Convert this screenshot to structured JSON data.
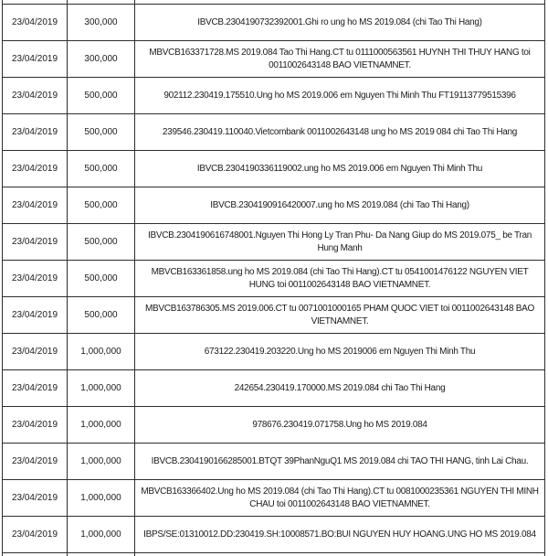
{
  "colors": {
    "background": "#ffffff",
    "border": "#2e2e2e",
    "text": "#1b1b1b"
  },
  "table": {
    "rows": [
      {
        "date": "23/04/2019",
        "amount": "300,000",
        "description": "IBVCB.2304190732392001.Ghi ro ung ho MS 2019.084 (chi Tao Thi Hang)"
      },
      {
        "date": "23/04/2019",
        "amount": "300,000",
        "description": "MBVCB163371728.MS 2019.084 Tao Thi Hang.CT tu 0111000563561 HUYNH THI THUY HANG toi 0011002643148 BAO VIETNAMNET."
      },
      {
        "date": "23/04/2019",
        "amount": "500,000",
        "description": "902112.230419.175510.Ung ho MS 2019.006 em Nguyen Thi Minh Thu FT19113779515396"
      },
      {
        "date": "23/04/2019",
        "amount": "500,000",
        "description": "239546.230419.110040.Vietcombank 0011002643148 ung ho MS 2019 084 chi Tao Thi Hang"
      },
      {
        "date": "23/04/2019",
        "amount": "500,000",
        "description": "IBVCB.2304190336119002.ung ho MS 2019.006 em Nguyen Thi Minh Thu"
      },
      {
        "date": "23/04/2019",
        "amount": "500,000",
        "description": "IBVCB.2304190916420007.ung ho MS 2019.084 (chi Tao Thi Hang)"
      },
      {
        "date": "23/04/2019",
        "amount": "500,000",
        "description": "IBVCB.2304190616748001.Nguyen Thi Hong Ly Tran Phu- Da Nang Giup do MS 2019.075_ be Tran Hung Manh"
      },
      {
        "date": "23/04/2019",
        "amount": "500,000",
        "description": "MBVCB163361858.ung ho MS 2019.084 (chi Tao Thi Hang).CT tu 0541001476122 NGUYEN VIET HUNG toi 0011002643148 BAO VIETNAMNET."
      },
      {
        "date": "23/04/2019",
        "amount": "500,000",
        "description": "MBVCB163786305.MS 2019.006.CT tu 0071001000165 PHAM QUOC VIET toi 0011002643148 BAO VIETNAMNET."
      },
      {
        "date": "23/04/2019",
        "amount": "1,000,000",
        "description": "673122.230419.203220.Ung ho MS 2019006 em Nguyen Thi Minh Thu"
      },
      {
        "date": "23/04/2019",
        "amount": "1,000,000",
        "description": "242654.230419.170000.MS 2019.084 chi Tao Thi Hang"
      },
      {
        "date": "23/04/2019",
        "amount": "1,000,000",
        "description": "978676.230419.071758.Ung ho MS 2019.084"
      },
      {
        "date": "23/04/2019",
        "amount": "1,000,000",
        "description": "IBVCB.2304190166285001.BTQT 39PhanNguQ1 MS 2019.084 chi TAO THI HANG, tinh Lai Chau."
      },
      {
        "date": "23/04/2019",
        "amount": "1,000,000",
        "description": "MBVCB163366402.Ung ho MS 2019.084 (chi Tao Thi Hang).CT tu 0081000235361 NGUYEN THI MINH CHAU toi 0011002643148 BAO VIETNAMNET."
      },
      {
        "date": "23/04/2019",
        "amount": "1,000,000",
        "description": "IBPS/SE:01310012.DD:230419.SH:10008571.BO:BUI NGUYEN HUY HOANG.UNG HO MS 2019.084"
      }
    ]
  }
}
